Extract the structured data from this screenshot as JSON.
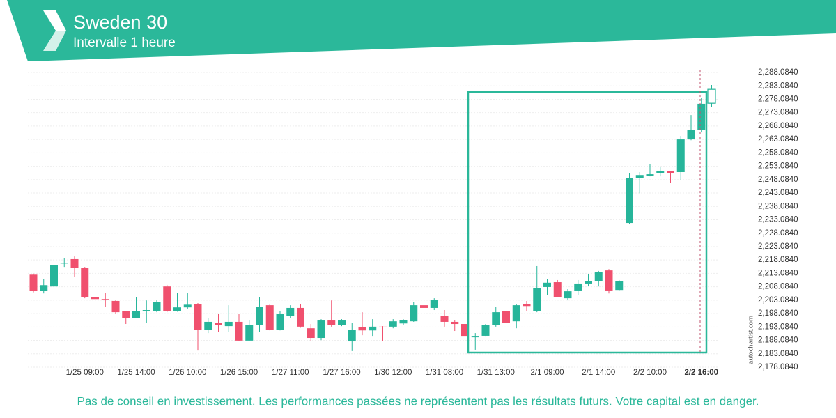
{
  "header": {
    "title": "Sweden 30",
    "subtitle": "Intervalle 1 heure"
  },
  "watermark": "autochartist.com",
  "disclaimer": "Pas de conseil en investissement. Les performances passées ne représentent pas les résultats futurs. Votre capital est en danger.",
  "chart_data": {
    "type": "candlestick",
    "categories": [
      null,
      null,
      null,
      null,
      null,
      "1/25 09:00",
      null,
      null,
      null,
      null,
      "1/25 14:00",
      null,
      null,
      null,
      null,
      "1/26 10:00",
      null,
      null,
      null,
      null,
      "1/26 15:00",
      null,
      null,
      null,
      null,
      "1/27 11:00",
      null,
      null,
      null,
      null,
      "1/27 16:00",
      null,
      null,
      null,
      null,
      "1/30 12:00",
      null,
      null,
      null,
      null,
      "1/31 08:00",
      null,
      null,
      null,
      null,
      "1/31 13:00",
      null,
      null,
      null,
      null,
      "2/1 09:00",
      null,
      null,
      null,
      null,
      "2/1 14:00",
      null,
      null,
      null,
      null,
      "2/2 10:00",
      null,
      null,
      null,
      null,
      "2/2 16:00",
      null
    ],
    "open": [
      2212.6,
      2206.6,
      2208.2,
      2216.9,
      2218.4,
      2215.2,
      2204.3,
      2203.5,
      2202.8,
      2198.9,
      2196.5,
      2199.3,
      2199.1,
      2208.2,
      2199.1,
      2200.4,
      2201.7,
      2192.1,
      2194.5,
      2193.4,
      2195.0,
      2188.0,
      2193.7,
      2201.2,
      2192.1,
      2197.3,
      2200.2,
      2192.6,
      2189.0,
      2195.5,
      2193.9,
      2187.7,
      2193.0,
      2191.8,
      2193.2,
      2193.2,
      2194.4,
      2195.2,
      2201.2,
      2200.2,
      2197.3,
      2195.0,
      2194.2,
      2189.3,
      2189.8,
      2193.7,
      2198.9,
      2195.2,
      2201.7,
      2198.9,
      2208.0,
      2209.8,
      2203.8,
      2206.7,
      2209.3,
      2210.1,
      2214.2,
      2206.9,
      2231.9,
      2248.8,
      2249.6,
      2250.4,
      2251.2,
      2250.9,
      2263.1,
      2266.7,
      2276.6
    ],
    "high": [
      2213.0,
      2211.0,
      2217.6,
      2218.9,
      2219.4,
      2215.5,
      2205.3,
      2205.9,
      2203.0,
      2199.1,
      2204.3,
      2203.0,
      2203.0,
      2208.8,
      2205.9,
      2205.9,
      2202.0,
      2196.5,
      2198.1,
      2201.2,
      2198.1,
      2195.5,
      2204.3,
      2201.7,
      2198.9,
      2201.2,
      2201.7,
      2194.2,
      2196.0,
      2203.0,
      2196.0,
      2194.7,
      2198.6,
      2196.0,
      2193.4,
      2196.0,
      2196.0,
      2202.5,
      2204.6,
      2203.8,
      2199.4,
      2195.5,
      2195.0,
      2190.8,
      2194.2,
      2200.7,
      2199.7,
      2201.7,
      2202.8,
      2215.8,
      2211.1,
      2210.6,
      2207.2,
      2210.6,
      2212.9,
      2214.0,
      2214.7,
      2210.6,
      2250.6,
      2250.9,
      2254.0,
      2252.7,
      2251.4,
      2264.4,
      2272.2,
      2278.7,
      2283.4
    ],
    "low": [
      2206.0,
      2205.6,
      2207.5,
      2215.5,
      2211.9,
      2203.8,
      2196.5,
      2200.7,
      2198.0,
      2194.2,
      2196.3,
      2194.7,
      2198.6,
      2198.6,
      2198.8,
      2199.9,
      2184.3,
      2190.8,
      2191.3,
      2191.3,
      2187.7,
      2187.7,
      2191.1,
      2191.8,
      2191.8,
      2196.5,
      2192.8,
      2187.7,
      2188.2,
      2193.2,
      2193.4,
      2184.1,
      2190.0,
      2189.5,
      2187.7,
      2192.6,
      2193.9,
      2195.0,
      2199.7,
      2199.4,
      2193.2,
      2191.6,
      2189.3,
      2184.6,
      2189.5,
      2193.2,
      2193.7,
      2192.6,
      2198.9,
      2198.6,
      2204.9,
      2204.1,
      2203.0,
      2205.1,
      2208.5,
      2208.2,
      2205.6,
      2206.7,
      2231.4,
      2243.0,
      2249.3,
      2249.3,
      2247.0,
      2248.0,
      2262.8,
      2265.7,
      2275.3
    ],
    "close": [
      2206.6,
      2208.7,
      2216.3,
      2217.0,
      2215.2,
      2204.1,
      2203.5,
      2203.2,
      2198.6,
      2196.5,
      2199.1,
      2199.4,
      2202.5,
      2199.1,
      2200.4,
      2201.4,
      2192.1,
      2195.0,
      2193.7,
      2195.0,
      2188.0,
      2193.7,
      2200.7,
      2192.1,
      2198.1,
      2200.2,
      2193.2,
      2189.0,
      2195.5,
      2193.7,
      2195.5,
      2192.1,
      2191.8,
      2193.2,
      2193.0,
      2195.2,
      2195.7,
      2201.2,
      2200.2,
      2203.3,
      2195.0,
      2194.2,
      2189.5,
      2189.5,
      2193.7,
      2198.6,
      2194.7,
      2201.2,
      2200.9,
      2207.7,
      2209.6,
      2204.3,
      2206.4,
      2209.3,
      2210.1,
      2213.5,
      2206.7,
      2210.1,
      2248.8,
      2249.8,
      2250.1,
      2251.2,
      2250.4,
      2263.1,
      2266.7,
      2276.4,
      2281.8
    ],
    "up_color": "#26b59a",
    "down_color": "#f0506e",
    "ylim": [
      2178.084,
      2288.084
    ],
    "yticks": [
      {
        "value": 2178.084,
        "label": "2,178.0840"
      },
      {
        "value": 2183.084,
        "label": "2,183.0840"
      },
      {
        "value": 2188.084,
        "label": "2,188.0840"
      },
      {
        "value": 2193.084,
        "label": "2,193.0840"
      },
      {
        "value": 2198.084,
        "label": "2,198.0840"
      },
      {
        "value": 2203.084,
        "label": "2,203.0840"
      },
      {
        "value": 2208.084,
        "label": "2,208.0840"
      },
      {
        "value": 2213.084,
        "label": "2,213.0840"
      },
      {
        "value": 2218.084,
        "label": "2,218.0840"
      },
      {
        "value": 2223.084,
        "label": "2,223.0840"
      },
      {
        "value": 2228.084,
        "label": "2,228.0840"
      },
      {
        "value": 2233.084,
        "label": "2,233.0840"
      },
      {
        "value": 2238.084,
        "label": "2,238.0840"
      },
      {
        "value": 2243.084,
        "label": "2,243.0840"
      },
      {
        "value": 2248.084,
        "label": "2,248.0840"
      },
      {
        "value": 2253.084,
        "label": "2,253.0840"
      },
      {
        "value": 2258.084,
        "label": "2,258.0840"
      },
      {
        "value": 2263.084,
        "label": "2,263.0840"
      },
      {
        "value": 2268.084,
        "label": "2,268.0840"
      },
      {
        "value": 2273.084,
        "label": "2,273.0840"
      },
      {
        "value": 2278.084,
        "label": "2,278.0840"
      },
      {
        "value": 2283.084,
        "label": "2,283.0840"
      },
      {
        "value": 2288.084,
        "label": "2,288.0840"
      }
    ],
    "grid": true
  }
}
